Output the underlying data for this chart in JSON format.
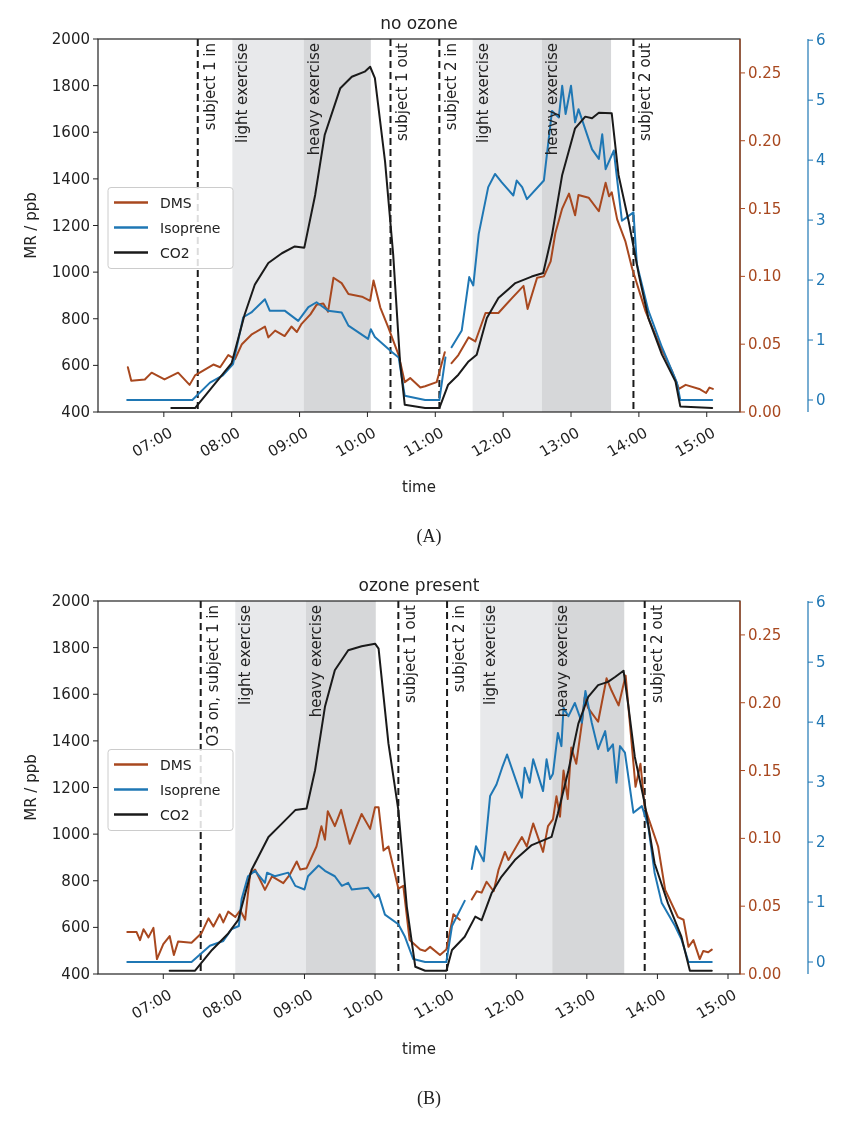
{
  "chart_data": [
    {
      "type": "line",
      "title": "no ozone",
      "xlabel": "time",
      "ylabel": "MR / ppb",
      "legend": "left",
      "annotations": [
        "(A)"
      ],
      "xlim": [
        6.03,
        15.49
      ],
      "xticks": [
        {
          "value": 7,
          "label": "07:00"
        },
        {
          "value": 8,
          "label": "08:00"
        },
        {
          "value": 9,
          "label": "09:00"
        },
        {
          "value": 10,
          "label": "10:00"
        },
        {
          "value": 11,
          "label": "11:00"
        },
        {
          "value": 12,
          "label": "12:00"
        },
        {
          "value": 13,
          "label": "13:00"
        },
        {
          "value": 14,
          "label": "14:00"
        },
        {
          "value": 15,
          "label": "15:00"
        }
      ],
      "ylim": [
        400,
        2000
      ],
      "yticks": [
        400,
        600,
        800,
        1000,
        1200,
        1400,
        1600,
        1800,
        2000
      ],
      "y2lim": [
        0,
        0.275
      ],
      "y2ticks": [
        {
          "value": 0,
          "label": "0.00"
        },
        0.05,
        {
          "value": 0.1,
          "label": "0.10"
        },
        0.15,
        {
          "value": 0.2,
          "label": "0.20"
        },
        0.25
      ],
      "y3lim": [
        -0.2,
        6.02
      ],
      "y3ticks": [
        0,
        1,
        2,
        3,
        4,
        5,
        6
      ],
      "bands": [
        {
          "axis": "x",
          "from": 8.01,
          "to": 9.06,
          "label": "light exercise",
          "color": "#e8e9eb"
        },
        {
          "axis": "x",
          "from": 9.06,
          "to": 10.05,
          "label": "heavy exercise",
          "color": "#d6d7d9"
        },
        {
          "axis": "x",
          "from": 11.55,
          "to": 12.57,
          "label": "light exercise",
          "color": "#e8e9eb"
        },
        {
          "axis": "x",
          "from": 12.57,
          "to": 13.59,
          "label": "heavy exercise",
          "color": "#d6d7d9"
        }
      ],
      "ref_lines": [
        {
          "axis": "x",
          "value": 7.5,
          "label": "subject 1 in",
          "color": "#1a1a1a",
          "line_style": "dashed"
        },
        {
          "axis": "x",
          "value": 10.34,
          "label": "subject 1 out",
          "color": "#1a1a1a",
          "line_style": "dashed"
        },
        {
          "axis": "x",
          "value": 11.06,
          "label": "subject 2 in",
          "color": "#1a1a1a",
          "line_style": "dashed"
        },
        {
          "axis": "x",
          "value": 13.92,
          "label": "subject 2 out",
          "color": "#1a1a1a",
          "line_style": "dashed"
        }
      ],
      "series": [
        {
          "name": "DMS",
          "color": "#a8481f",
          "axis": "y2",
          "x": [
            6.47,
            6.52,
            6.72,
            6.82,
            7.01,
            7.21,
            7.38,
            7.46,
            7.73,
            7.83,
            7.95,
            8.05,
            8.15,
            8.29,
            8.49,
            8.54,
            8.64,
            8.78,
            8.88,
            8.96,
            9.03,
            9.16,
            9.25,
            9.35,
            9.42,
            9.5,
            9.62,
            9.72,
            9.92,
            10.04,
            10.09,
            10.19,
            10.31,
            10.46,
            10.55,
            10.63,
            10.78,
            10.85,
            11.02,
            11.14,
            11.19,
            11.24,
            11.34,
            11.49,
            11.59,
            11.74,
            11.93,
            12.13,
            12.3,
            12.36,
            12.5,
            12.6,
            12.7,
            12.77,
            12.87,
            12.97,
            13.06,
            13.11,
            13.26,
            13.41,
            13.51,
            13.56,
            13.6,
            13.68,
            13.8,
            13.9,
            14.1,
            14.3,
            14.49,
            14.59,
            14.69,
            14.89,
            14.99,
            15.04,
            15.09
          ],
          "values": [
            0.033,
            0.023,
            0.024,
            0.029,
            0.024,
            0.029,
            0.02,
            0.027,
            0.035,
            0.033,
            0.042,
            0.039,
            0.05,
            0.057,
            0.063,
            0.055,
            0.06,
            0.056,
            0.063,
            0.059,
            0.065,
            0.072,
            0.079,
            0.08,
            0.074,
            0.099,
            0.095,
            0.087,
            0.085,
            0.082,
            0.097,
            0.077,
            0.062,
            0.042,
            0.022,
            0.025,
            0.018,
            0.019,
            0.022,
            0.044,
            null,
            0.036,
            0.042,
            0.055,
            0.052,
            0.073,
            0.073,
            0.084,
            0.093,
            0.076,
            0.099,
            0.1,
            0.111,
            0.132,
            0.15,
            0.161,
            0.145,
            0.16,
            0.158,
            0.148,
            0.169,
            0.159,
            0.162,
            0.142,
            0.126,
            0.106,
            0.074,
            0.05,
            0.03,
            0.017,
            0.02,
            0.017,
            0.014,
            0.018,
            0.017
          ]
        },
        {
          "name": "Isoprene",
          "color": "#1f77b4",
          "axis": "y3",
          "x": [
            6.46,
            7.42,
            7.68,
            7.87,
            8.02,
            8.17,
            8.29,
            8.49,
            8.56,
            8.78,
            8.98,
            9.13,
            9.25,
            9.42,
            9.62,
            9.72,
            10.01,
            10.05,
            10.11,
            10.36,
            10.46,
            10.55,
            10.85,
            11.06,
            11.15,
            11.2,
            11.24,
            11.39,
            11.5,
            11.56,
            11.64,
            11.78,
            11.88,
            11.98,
            12.15,
            12.2,
            12.28,
            12.35,
            12.6,
            12.72,
            12.82,
            12.87,
            12.92,
            13.0,
            13.06,
            13.11,
            13.31,
            13.41,
            13.46,
            13.51,
            13.63,
            13.75,
            13.85,
            13.92,
            13.97,
            14.14,
            14.34,
            14.56,
            14.61,
            15.08
          ],
          "values": [
            0,
            0,
            0.29,
            0.41,
            0.6,
            1.38,
            1.46,
            1.68,
            1.49,
            1.49,
            1.32,
            1.55,
            1.63,
            1.49,
            1.46,
            1.24,
            1.02,
            1.18,
            1.05,
            0.8,
            0.71,
            0.07,
            0,
            0,
            0.71,
            null,
            0.88,
            1.16,
            2.05,
            1.91,
            2.77,
            3.55,
            3.77,
            3.63,
            3.41,
            3.66,
            3.55,
            3.35,
            3.66,
            4.82,
            4.71,
            5.24,
            4.77,
            5.24,
            4.63,
            4.85,
            4.18,
            4.02,
            4.43,
            3.85,
            4.16,
            2.99,
            3.07,
            3.13,
            2.27,
            1.49,
            0.88,
            0.29,
            0,
            0
          ]
        },
        {
          "name": "CO2",
          "color": "#1a1a1a",
          "axis": "y",
          "x": [
            7.11,
            7.46,
            8.0,
            8.19,
            8.34,
            8.54,
            8.74,
            8.93,
            9.07,
            9.23,
            9.37,
            9.6,
            9.77,
            9.96,
            10.04,
            10.11,
            10.26,
            10.38,
            10.48,
            10.55,
            10.85,
            11.06,
            11.19,
            11.34,
            11.49,
            11.61,
            11.76,
            11.93,
            12.18,
            12.42,
            12.59,
            12.72,
            12.87,
            13.06,
            13.21,
            13.31,
            13.41,
            13.6,
            13.7,
            13.85,
            14.0,
            14.14,
            14.34,
            14.54,
            14.61,
            15.08
          ],
          "values": [
            417,
            417,
            610,
            817,
            946,
            1039,
            1081,
            1110,
            1105,
            1331,
            1588,
            1789,
            1838,
            1860,
            1881,
            1832,
            1474,
            1074,
            617,
            431,
            417,
            417,
            517,
            560,
            617,
            646,
            803,
            889,
            953,
            981,
            996,
            1160,
            1417,
            1617,
            1667,
            1660,
            1684,
            1681,
            1417,
            1217,
            988,
            803,
            646,
            531,
            424,
            417
          ]
        }
      ]
    },
    {
      "type": "line",
      "title": "ozone present",
      "xlabel": "time",
      "ylabel": "MR / ppb",
      "legend": "left",
      "annotations": [
        "(B)"
      ],
      "xlim": [
        6.075,
        15.17
      ],
      "xticks": [
        {
          "value": 7,
          "label": "07:00"
        },
        {
          "value": 8,
          "label": "08:00"
        },
        {
          "value": 9,
          "label": "09:00"
        },
        {
          "value": 10,
          "label": "10:00"
        },
        {
          "value": 11,
          "label": "11:00"
        },
        {
          "value": 12,
          "label": "12:00"
        },
        {
          "value": 13,
          "label": "13:00"
        },
        {
          "value": 14,
          "label": "14:00"
        },
        {
          "value": 15,
          "label": "15:00"
        }
      ],
      "ylim": [
        400,
        2000
      ],
      "yticks": [
        400,
        600,
        800,
        1000,
        1200,
        1400,
        1600,
        1800,
        2000
      ],
      "y2lim": [
        0,
        0.275
      ],
      "y2ticks": [
        {
          "value": 0,
          "label": "0.00"
        },
        0.05,
        {
          "value": 0.1,
          "label": "0.10"
        },
        0.15,
        {
          "value": 0.2,
          "label": "0.20"
        },
        0.25
      ],
      "y3lim": [
        -0.2,
        6.02
      ],
      "y3ticks": [
        0,
        1,
        2,
        3,
        4,
        5,
        6
      ],
      "bands": [
        {
          "axis": "x",
          "from": 8.02,
          "to": 9.02,
          "label": "light exercise",
          "color": "#e8e9eb"
        },
        {
          "axis": "x",
          "from": 9.02,
          "to": 10.01,
          "label": "heavy exercise",
          "color": "#d6d7d9"
        },
        {
          "axis": "x",
          "from": 11.49,
          "to": 12.51,
          "label": "light exercise",
          "color": "#e8e9eb"
        },
        {
          "axis": "x",
          "from": 12.51,
          "to": 13.53,
          "label": "heavy exercise",
          "color": "#d6d7d9"
        }
      ],
      "ref_lines": [
        {
          "axis": "x",
          "value": 7.53,
          "label": "O3 on, subject 1 in",
          "color": "#1a1a1a",
          "line_style": "dashed"
        },
        {
          "axis": "x",
          "value": 10.33,
          "label": "subject 1 out",
          "color": "#1a1a1a",
          "line_style": "dashed"
        },
        {
          "axis": "x",
          "value": 11.02,
          "label": "subject 2 in",
          "color": "#1a1a1a",
          "line_style": "dashed"
        },
        {
          "axis": "x",
          "value": 13.82,
          "label": "subject 2 out",
          "color": "#1a1a1a",
          "line_style": "dashed"
        }
      ],
      "series": [
        {
          "name": "DMS",
          "color": "#a8481f",
          "axis": "y2",
          "x": [
            6.49,
            6.62,
            6.67,
            6.72,
            6.79,
            6.86,
            6.91,
            7.0,
            7.09,
            7.15,
            7.21,
            7.4,
            7.54,
            7.64,
            7.71,
            7.8,
            7.85,
            7.92,
            8.02,
            8.09,
            8.16,
            8.23,
            8.3,
            8.44,
            8.54,
            8.7,
            8.79,
            8.89,
            8.94,
            9.03,
            9.17,
            9.24,
            9.29,
            9.33,
            9.43,
            9.52,
            9.64,
            9.81,
            9.93,
            10.0,
            10.05,
            10.12,
            10.19,
            10.33,
            10.4,
            10.49,
            10.64,
            10.71,
            10.78,
            10.92,
            11.01,
            11.11,
            11.2,
            11.28,
            11.37,
            11.44,
            11.51,
            11.58,
            11.68,
            11.75,
            11.84,
            11.89,
            12.08,
            12.15,
            12.24,
            12.38,
            12.45,
            12.52,
            12.57,
            12.62,
            12.67,
            12.73,
            12.78,
            12.85,
            12.93,
            12.97,
            13.02,
            13.16,
            13.28,
            13.35,
            13.45,
            13.55,
            13.69,
            13.76,
            13.82,
            14.01,
            14.11,
            14.29,
            14.37,
            14.44,
            14.51,
            14.6,
            14.65,
            14.72,
            14.77
          ],
          "values": [
            0.031,
            0.031,
            0.025,
            0.033,
            0.027,
            0.034,
            0.011,
            0.022,
            0.028,
            0.014,
            0.024,
            0.023,
            0.03,
            0.041,
            0.035,
            0.044,
            0.038,
            0.046,
            0.042,
            0.047,
            0.04,
            0.074,
            0.077,
            0.062,
            0.072,
            0.067,
            0.073,
            0.083,
            0.077,
            0.078,
            0.094,
            0.109,
            0.099,
            0.12,
            0.109,
            0.121,
            0.096,
            0.118,
            0.107,
            0.123,
            0.123,
            0.091,
            0.094,
            0.063,
            0.065,
            0.025,
            0.018,
            0.017,
            0.02,
            0.014,
            0.018,
            0.044,
            0.04,
            null,
            0.055,
            0.061,
            0.06,
            0.068,
            0.061,
            0.077,
            0.09,
            0.084,
            0.101,
            0.094,
            0.111,
            0.09,
            0.109,
            0.114,
            0.131,
            0.116,
            0.15,
            0.129,
            0.167,
            0.155,
            0.185,
            0.204,
            0.196,
            0.186,
            0.218,
            0.209,
            0.198,
            0.22,
            0.138,
            0.155,
            0.123,
            0.094,
            0.062,
            0.042,
            0.04,
            0.02,
            0.025,
            0.011,
            0.017,
            0.016,
            0.018
          ]
        },
        {
          "name": "Isoprene",
          "color": "#1f77b4",
          "axis": "y3",
          "x": [
            6.49,
            7.4,
            7.66,
            7.85,
            7.97,
            8.07,
            8.11,
            8.2,
            8.3,
            8.44,
            8.47,
            8.58,
            8.77,
            8.87,
            9.0,
            9.05,
            9.2,
            9.29,
            9.43,
            9.53,
            9.62,
            9.67,
            9.9,
            10.0,
            10.05,
            10.14,
            10.33,
            10.42,
            10.54,
            10.71,
            11.01,
            11.09,
            11.27,
            11.32,
            11.37,
            11.43,
            11.54,
            11.63,
            11.72,
            11.8,
            11.87,
            12.08,
            12.12,
            12.19,
            12.24,
            12.38,
            12.43,
            12.48,
            12.52,
            12.59,
            12.64,
            12.67,
            12.74,
            12.83,
            12.93,
            12.98,
            13.07,
            13.16,
            13.26,
            13.3,
            13.37,
            13.42,
            13.47,
            13.54,
            13.66,
            13.78,
            13.87,
            13.96,
            14.06,
            14.25,
            14.34,
            14.44,
            14.77
          ],
          "values": [
            0,
            0,
            0.27,
            0.35,
            0.55,
            0.6,
            1.05,
            1.43,
            1.52,
            1.32,
            1.49,
            1.43,
            1.49,
            1.27,
            1.21,
            1.43,
            1.61,
            1.52,
            1.43,
            1.27,
            1.32,
            1.21,
            1.24,
            1.07,
            1.13,
            0.79,
            0.63,
            0.43,
            0.05,
            0,
            0,
            0.6,
            1.02,
            null,
            1.55,
            1.93,
            1.68,
            2.77,
            2.96,
            3.24,
            3.46,
            2.74,
            3.24,
            2.99,
            3.38,
            2.85,
            3.38,
            3.05,
            3.14,
            3.82,
            3.6,
            4.24,
            4.1,
            4.32,
            3.99,
            4.52,
            3.99,
            3.55,
            3.85,
            3.52,
            3.63,
            2.99,
            3.6,
            3.49,
            2.49,
            2.6,
            2.27,
            1.49,
            0.99,
            0.6,
            0.38,
            0,
            0
          ]
        },
        {
          "name": "CO2",
          "color": "#1a1a1a",
          "axis": "y",
          "x": [
            7.09,
            7.45,
            7.69,
            7.92,
            8.06,
            8.25,
            8.49,
            8.68,
            8.87,
            9.03,
            9.15,
            9.29,
            9.43,
            9.62,
            9.81,
            10.0,
            10.05,
            10.19,
            10.33,
            10.45,
            10.57,
            10.71,
            11.01,
            11.09,
            11.27,
            11.42,
            11.51,
            11.65,
            11.79,
            11.98,
            12.22,
            12.5,
            12.59,
            12.74,
            12.88,
            13.02,
            13.16,
            13.3,
            13.4,
            13.52,
            13.59,
            13.68,
            13.82,
            13.96,
            14.15,
            14.34,
            14.46,
            14.77
          ],
          "values": [
            414,
            414,
            503,
            574,
            631,
            846,
            988,
            1045,
            1103,
            1110,
            1274,
            1546,
            1703,
            1789,
            1806,
            1817,
            1796,
            1388,
            1103,
            688,
            431,
            414,
            414,
            503,
            560,
            646,
            631,
            746,
            817,
            889,
            953,
            988,
            1088,
            1274,
            1474,
            1589,
            1639,
            1653,
            1674,
            1701,
            1546,
            1331,
            1132,
            875,
            703,
            560,
            414,
            414
          ]
        }
      ]
    }
  ]
}
